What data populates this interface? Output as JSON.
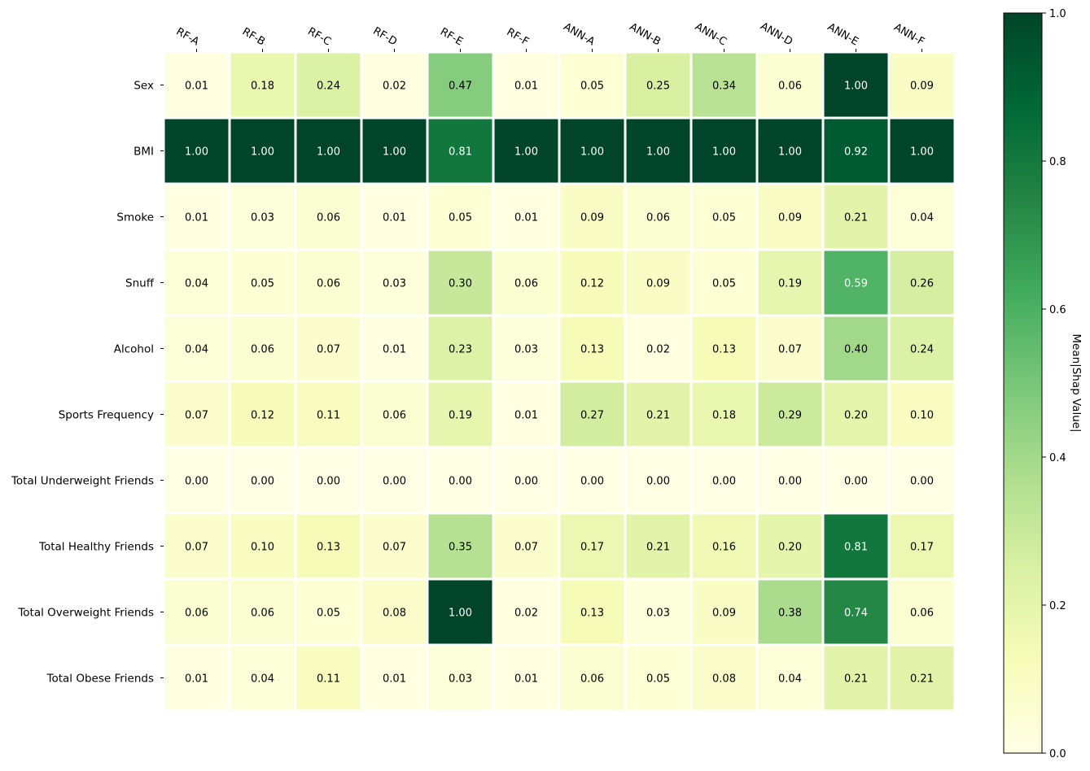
{
  "chart_data": {
    "type": "heatmap",
    "title": "",
    "xlabel": "",
    "ylabel": "",
    "x_categories": [
      "RF-A",
      "RF-B",
      "RF-C",
      "RF-D",
      "RF-E",
      "RF-F",
      "ANN-A",
      "ANN-B",
      "ANN-C",
      "ANN-D",
      "ANN-E",
      "ANN-F"
    ],
    "y_categories": [
      "Sex",
      "BMI",
      "Smoke",
      "Snuff",
      "Alcohol",
      "Sports Frequency",
      "Total Underweight Friends",
      "Total Healthy Friends",
      "Total Overweight Friends",
      "Total Obese Friends"
    ],
    "values": [
      [
        0.01,
        0.18,
        0.24,
        0.02,
        0.47,
        0.01,
        0.05,
        0.25,
        0.34,
        0.06,
        1.0,
        0.09
      ],
      [
        1.0,
        1.0,
        1.0,
        1.0,
        0.81,
        1.0,
        1.0,
        1.0,
        1.0,
        1.0,
        0.92,
        1.0
      ],
      [
        0.01,
        0.03,
        0.06,
        0.01,
        0.05,
        0.01,
        0.09,
        0.06,
        0.05,
        0.09,
        0.21,
        0.04
      ],
      [
        0.04,
        0.05,
        0.06,
        0.03,
        0.3,
        0.06,
        0.12,
        0.09,
        0.05,
        0.19,
        0.59,
        0.26
      ],
      [
        0.04,
        0.06,
        0.07,
        0.01,
        0.23,
        0.03,
        0.13,
        0.02,
        0.13,
        0.07,
        0.4,
        0.24
      ],
      [
        0.07,
        0.12,
        0.11,
        0.06,
        0.19,
        0.01,
        0.27,
        0.21,
        0.18,
        0.29,
        0.2,
        0.1
      ],
      [
        0.0,
        0.0,
        0.0,
        0.0,
        0.0,
        0.0,
        0.0,
        0.0,
        0.0,
        0.0,
        0.0,
        0.0
      ],
      [
        0.07,
        0.1,
        0.13,
        0.07,
        0.35,
        0.07,
        0.17,
        0.21,
        0.16,
        0.2,
        0.81,
        0.17
      ],
      [
        0.06,
        0.06,
        0.05,
        0.08,
        1.0,
        0.02,
        0.13,
        0.03,
        0.09,
        0.38,
        0.74,
        0.06
      ],
      [
        0.01,
        0.04,
        0.11,
        0.01,
        0.03,
        0.01,
        0.06,
        0.05,
        0.08,
        0.04,
        0.21,
        0.21
      ]
    ],
    "colormap": "YlGn",
    "colormap_stops": [
      "#ffffe5",
      "#f7fcb9",
      "#d9f0a3",
      "#addd8e",
      "#78c679",
      "#41ab5d",
      "#238443",
      "#006837",
      "#004529"
    ],
    "value_range": [
      0,
      1
    ],
    "colorbar": {
      "label": "Mean|Shap Value|",
      "ticks": [
        "0.0",
        "0.2",
        "0.4",
        "0.6",
        "0.8",
        "1.0"
      ]
    },
    "x_labels_position": "top",
    "grid": false
  }
}
